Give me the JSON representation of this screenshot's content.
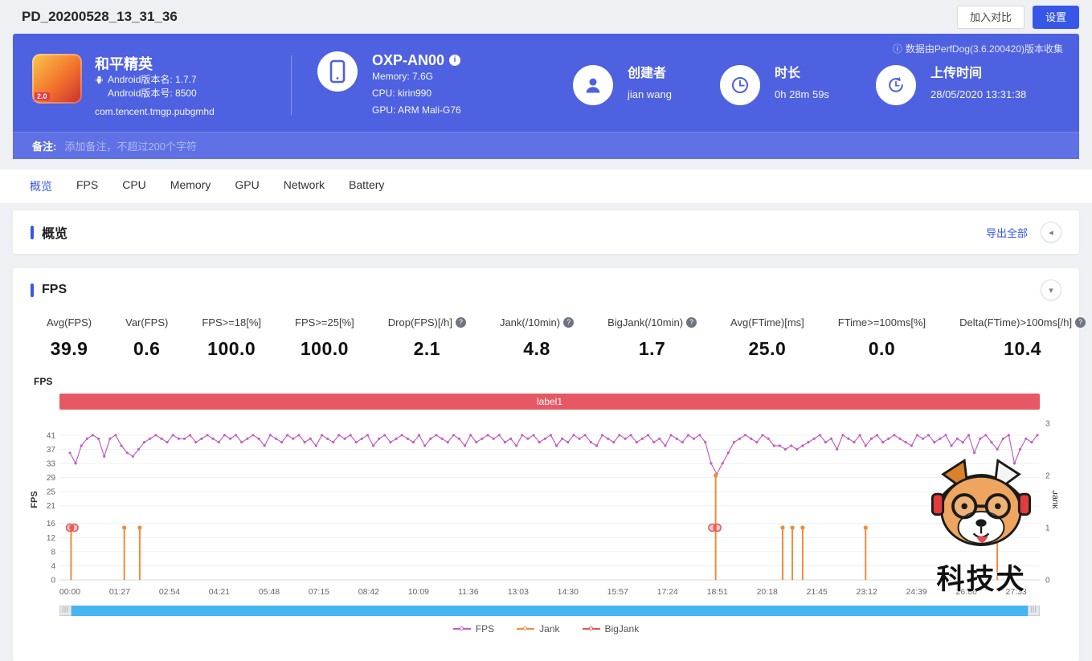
{
  "page": {
    "title": "PD_20200528_13_31_36"
  },
  "topbar": {
    "compare_button": "加入对比",
    "settings_button": "设置"
  },
  "icons": {
    "info": "i",
    "info_circle": "ⓘ",
    "help": "?",
    "collapse_left": "◂",
    "collapse_down": "▾",
    "drag_handle": "|||"
  },
  "colors": {
    "accent": "#3657e8",
    "banner": "#4d61e1",
    "label_band": "#e65864",
    "scrollbar": "#47b5f0"
  },
  "banner": {
    "app": {
      "name": "和平精英",
      "badge": "2.0",
      "android_version_label": "Android版本名: 1.7.7",
      "android_build_label": "Android版本号: 8500",
      "package": "com.tencent.tmgp.pubgmhd"
    },
    "device": {
      "model": "OXP-AN00",
      "memory": "Memory: 7.6G",
      "cpu": "CPU: kirin990",
      "gpu": "GPU: ARM Mali-G76"
    },
    "creator": {
      "label": "创建者",
      "value": "jian wang"
    },
    "duration": {
      "label": "时长",
      "value": "0h 28m 59s"
    },
    "upload": {
      "label": "上传时间",
      "value": "28/05/2020 13:31:38"
    },
    "collect_note": "数据由PerfDog(3.6.200420)版本收集",
    "remark_label": "备注:",
    "remark_placeholder": "添加备注，不超过200个字符"
  },
  "tabs": {
    "items": [
      "概览",
      "FPS",
      "CPU",
      "Memory",
      "GPU",
      "Network",
      "Battery"
    ],
    "active_index": 0
  },
  "overview": {
    "title": "概览",
    "export_all": "导出全部"
  },
  "fps_panel": {
    "title": "FPS",
    "chart_corner_label": "FPS",
    "stats": [
      {
        "label": "Avg(FPS)",
        "value": "39.9",
        "help": false
      },
      {
        "label": "Var(FPS)",
        "value": "0.6",
        "help": false
      },
      {
        "label": "FPS>=18[%]",
        "value": "100.0",
        "help": false
      },
      {
        "label": "FPS>=25[%]",
        "value": "100.0",
        "help": false
      },
      {
        "label": "Drop(FPS)[/h]",
        "value": "2.1",
        "help": true
      },
      {
        "label": "Jank(/10min)",
        "value": "4.8",
        "help": true
      },
      {
        "label": "BigJank(/10min)",
        "value": "1.7",
        "help": true
      },
      {
        "label": "Avg(FTime)[ms]",
        "value": "25.0",
        "help": false
      },
      {
        "label": "FTime>=100ms[%]",
        "value": "0.0",
        "help": false
      },
      {
        "label": "Delta(FTime)>100ms[/h]",
        "value": "10.4",
        "help": true
      }
    ]
  },
  "watermark": {
    "text": "科技犬"
  },
  "chart_data": {
    "type": "line",
    "title": "FPS",
    "annotation": "label1",
    "x_tick_labels": [
      "00:00",
      "01:27",
      "02:54",
      "04:21",
      "05:48",
      "07:15",
      "08:42",
      "10:09",
      "11:36",
      "13:03",
      "14:30",
      "15:57",
      "17:24",
      "18:51",
      "20:18",
      "21:45",
      "23:12",
      "24:39",
      "26:06",
      "27:33"
    ],
    "x_tick_interval_s": 87,
    "t_max_s": 1690,
    "left_axis": {
      "label": "FPS",
      "ticks": [
        41,
        37,
        33,
        29,
        25,
        21,
        16,
        12,
        8,
        4,
        0
      ],
      "max": 45.5
    },
    "right_axis": {
      "label": "Jank",
      "ticks": [
        3,
        2,
        1,
        0
      ],
      "max": 3
    },
    "legend": [
      "FPS",
      "Jank",
      "BigJank"
    ],
    "series": [
      {
        "name": "FPS",
        "color": "#c45fc2",
        "axis": "left",
        "type": "line",
        "sample_interval_s": 10,
        "values": [
          36,
          33,
          38,
          40,
          41,
          40,
          35,
          40,
          41,
          38,
          36,
          35,
          37,
          39,
          40,
          41,
          40,
          39,
          41,
          40,
          40,
          41,
          39,
          40,
          41,
          40,
          39,
          41,
          40,
          41,
          39,
          40,
          41,
          40,
          38,
          41,
          40,
          39,
          41,
          40,
          41,
          39,
          40,
          38,
          41,
          40,
          39,
          41,
          40,
          41,
          39,
          40,
          41,
          38,
          40,
          41,
          39,
          40,
          41,
          40,
          39,
          41,
          38,
          40,
          41,
          40,
          39,
          41,
          40,
          38,
          41,
          39,
          40,
          41,
          40,
          41,
          39,
          40,
          38,
          41,
          40,
          41,
          39,
          40,
          41,
          38,
          40,
          39,
          41,
          40,
          41,
          39,
          38,
          41,
          40,
          39,
          41,
          40,
          41,
          39,
          40,
          41,
          39,
          40,
          38,
          41,
          40,
          39,
          41,
          40,
          41,
          39,
          33,
          30,
          33,
          36,
          39,
          40,
          41,
          40,
          39,
          41,
          40,
          38,
          38,
          37,
          38,
          37,
          38,
          39,
          40,
          41,
          39,
          40,
          37,
          41,
          40,
          39,
          41,
          38,
          40,
          41,
          39,
          40,
          41,
          40,
          39,
          38,
          41,
          40,
          41,
          39,
          40,
          41,
          38,
          40,
          39,
          41,
          36,
          40,
          41,
          39,
          37,
          40,
          41,
          33,
          37,
          40,
          39,
          41
        ]
      },
      {
        "name": "Jank",
        "color": "#ee8c3c",
        "axis": "right",
        "type": "event-spike",
        "events": [
          [
            2,
            1
          ],
          [
            95,
            1
          ],
          [
            122,
            1
          ],
          [
            1128,
            2
          ],
          [
            1245,
            1
          ],
          [
            1262,
            1
          ],
          [
            1280,
            1
          ],
          [
            1390,
            1
          ],
          [
            1620,
            1
          ]
        ]
      },
      {
        "name": "BigJank",
        "color": "#e25555",
        "axis": "right",
        "type": "event-marker",
        "events": [
          [
            0,
            1
          ],
          [
            8,
            1
          ],
          [
            1122,
            1
          ],
          [
            1131,
            1
          ]
        ]
      }
    ]
  }
}
